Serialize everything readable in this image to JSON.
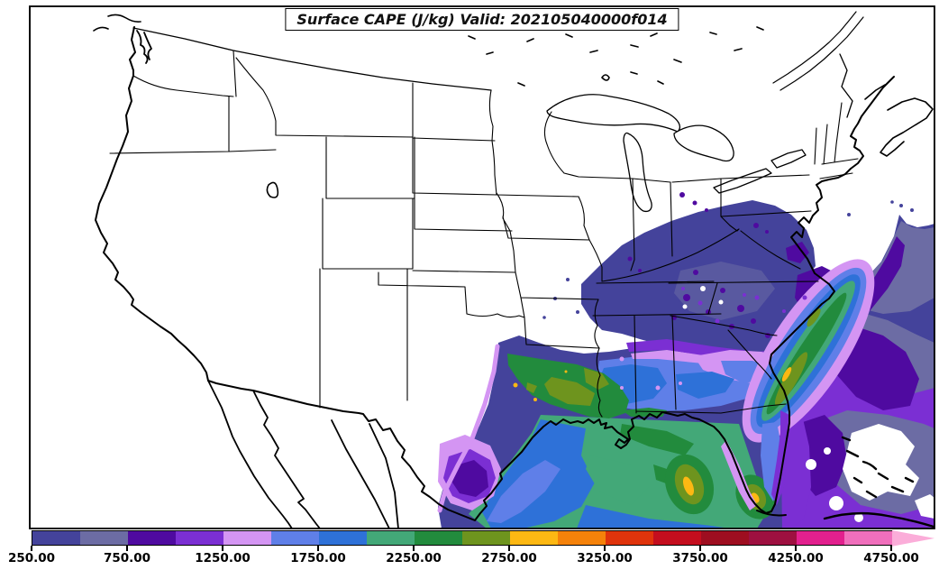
{
  "title": {
    "text": "Surface CAPE (J/kg) Valid: 202105040000f014"
  },
  "chart_data": {
    "type": "heatmap",
    "subtype": "filled-contour-map",
    "variable": "Surface CAPE",
    "units": "J/kg",
    "valid_label": "202105040000f014",
    "region_shown": "Continental United States and adjacent Gulf of Mexico / western Atlantic",
    "contour_interval": 250,
    "range_shown": [
      250,
      5000
    ],
    "colorbar": {
      "tick_labels": [
        "250.00",
        "750.00",
        "1250.00",
        "1750.00",
        "2250.00",
        "2750.00",
        "3250.00",
        "3750.00",
        "4250.00",
        "4750.00"
      ],
      "segments": [
        {
          "from": 250,
          "to": 500,
          "color": "#44439B"
        },
        {
          "from": 500,
          "to": 750,
          "color": "#6C6CA4"
        },
        {
          "from": 750,
          "to": 1000,
          "color": "#4F0AA0"
        },
        {
          "from": 1000,
          "to": 1250,
          "color": "#7B2FD3"
        },
        {
          "from": 1250,
          "to": 1500,
          "color": "#D495F3"
        },
        {
          "from": 1500,
          "to": 1750,
          "color": "#5F7FE8"
        },
        {
          "from": 1750,
          "to": 2000,
          "color": "#2E71D8"
        },
        {
          "from": 2000,
          "to": 2250,
          "color": "#43A878"
        },
        {
          "from": 2250,
          "to": 2500,
          "color": "#228B3D"
        },
        {
          "from": 2500,
          "to": 2750,
          "color": "#6E941E"
        },
        {
          "from": 2750,
          "to": 3000,
          "color": "#FDB813"
        },
        {
          "from": 3000,
          "to": 3250,
          "color": "#F5820A"
        },
        {
          "from": 3250,
          "to": 3500,
          "color": "#E0340C"
        },
        {
          "from": 3500,
          "to": 3750,
          "color": "#C40E1E"
        },
        {
          "from": 3750,
          "to": 4000,
          "color": "#9E0E20"
        },
        {
          "from": 4000,
          "to": 4250,
          "color": "#9E1040"
        },
        {
          "from": 4250,
          "to": 4500,
          "color": "#E2208E"
        },
        {
          "from": 4500,
          "to": 4750,
          "color": "#F06FBC"
        }
      ],
      "extend_color": "#FBADD9"
    },
    "field_readings": [
      {
        "region": "Plains, Midwest, Rockies, West Coast",
        "cape_jkg": "< 250 (unshaded)"
      },
      {
        "region": "Mid-Atlantic and Appalachians (KY, TN, VA, NC)",
        "cape_jkg": "250-1000"
      },
      {
        "region": "Southeast interior (MS, AL, GA, SC)",
        "cape_jkg": "1250-2000"
      },
      {
        "region": "East Texas and Louisiana coastal plain",
        "cape_jkg": "2250-2750, local spots ~2750-3000"
      },
      {
        "region": "Central and eastern Gulf of Mexico",
        "cape_jkg": "1750-2500, bullseyes ~2750-3000 southwest of Florida"
      },
      {
        "region": "Gulf Stream band off the Carolinas",
        "cape_jkg": "1250-2500, core ~2750-3000"
      },
      {
        "region": "South Texas coast / lower Rio Grande",
        "cape_jkg": "750-1500 (local minimum core 750-1000)"
      },
      {
        "region": "Western Atlantic near Bahamas and Cuba",
        "cape_jkg": "250-1250 with unshaded gaps"
      }
    ]
  },
  "palette": {
    "slate": "#44439B",
    "graySlate": "#6C6CA4",
    "violet": "#4F0AA0",
    "purple": "#7B2FD3",
    "lavender": "#D495F3",
    "cornflower": "#5F7FE8",
    "blue": "#2E71D8",
    "seagreen": "#43A878",
    "green": "#228B3D",
    "olive": "#6E941E",
    "yellow": "#FDB813",
    "white": "#FFFFFF"
  }
}
